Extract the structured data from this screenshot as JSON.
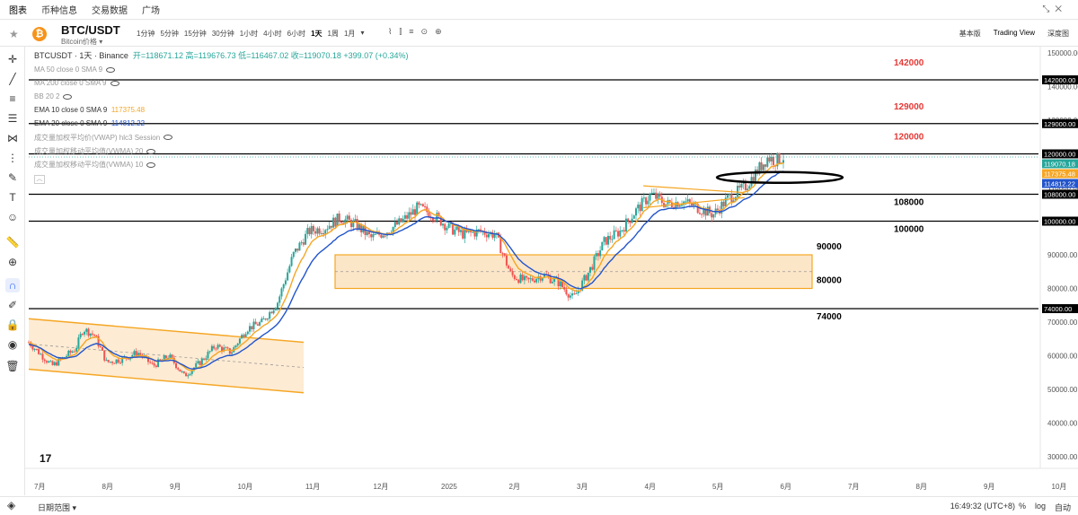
{
  "topbar": {
    "tabs": [
      "图表",
      "币种信息",
      "交易数据",
      "广场"
    ]
  },
  "header": {
    "pair": "BTC/USDT",
    "subtitle": "Bitcoin价格",
    "coin_letter": "₿",
    "intervals": [
      "1分钟",
      "5分钟",
      "15分钟",
      "30分钟",
      "1小时",
      "4小时",
      "6小时",
      "1天",
      "1周",
      "1月"
    ],
    "active_interval": "1天",
    "views": [
      "基本版",
      "Trading View",
      "深度图"
    ],
    "active_view": "Trading View"
  },
  "legend": {
    "ohlc_line": "BTCUSDT · 1天 · Binance",
    "ohlc_values": "开=118671.12 高=119676.73 低=116467.02 收=119070.18 +399.07 (+0.34%)",
    "ma50": "MA 50 close 0 SMA 9",
    "ma200": "MA 200 close 0 SMA 9",
    "bb": "BB 20 2",
    "ema10": "EMA 10 close 0 SMA 9",
    "ema10_value": "117375.48",
    "ema20": "EMA 20 close 0 SMA 9",
    "ema20_value": "114812.22",
    "vwap": "成交量加权平均价(VWAP) hlc3 Session",
    "vwma20": "成交量加权移动平均值(VWMA) 20",
    "vwma10": "成交量加权移动平均值(VWMA) 10"
  },
  "colors": {
    "up": "#26a69a",
    "down": "#ef5350",
    "ema10": "#f5a623",
    "ema20": "#2255cc",
    "zone_fill": "#fce6c8",
    "zone_border": "#f5a623",
    "annotation_red": "#e53935"
  },
  "chart_data": {
    "type": "candlestick",
    "y_range": [
      30000,
      150000
    ],
    "y_ticks": [
      "150000.00",
      "140000.00",
      "130000.00",
      "120000.00",
      "110000.00",
      "100000.00",
      "90000.00",
      "80000.00",
      "70000.00",
      "60000.00",
      "50000.00",
      "40000.00",
      "30000.00"
    ],
    "x_labels": [
      "7月",
      "8月",
      "9月",
      "10月",
      "11月",
      "12月",
      "2025",
      "2月",
      "3月",
      "4月",
      "5月",
      "6月",
      "7月",
      "8月",
      "9月",
      "10月"
    ],
    "price_tags": [
      {
        "label": "142000.00",
        "value": 142000,
        "color": "#000000"
      },
      {
        "label": "129000.00",
        "value": 129000,
        "color": "#000000"
      },
      {
        "label": "120000.00",
        "value": 120000,
        "color": "#000000"
      },
      {
        "label": "119070.18",
        "value": 119070.18,
        "color": "#26a69a"
      },
      {
        "label": "117375.48",
        "value": 117375.48,
        "color": "#f5a623"
      },
      {
        "label": "114812.22",
        "value": 114812.22,
        "color": "#2255cc"
      },
      {
        "label": "108000.00",
        "value": 108000,
        "color": "#000000"
      },
      {
        "label": "100000.00",
        "value": 100000,
        "color": "#000000"
      },
      {
        "label": "74000.00",
        "value": 74000,
        "color": "#000000"
      }
    ],
    "horizontal_levels": [
      142000,
      129000,
      120000,
      108000,
      100000,
      74000
    ],
    "annotations": [
      {
        "text": "142000",
        "value": 142000,
        "color": "red"
      },
      {
        "text": "129000",
        "value": 129000,
        "color": "red"
      },
      {
        "text": "120000",
        "value": 120000,
        "color": "red"
      },
      {
        "text": "108000",
        "value": 108000,
        "color": "black"
      },
      {
        "text": "100000",
        "value": 100000,
        "color": "black"
      },
      {
        "text": "90000",
        "value": 90000,
        "color": "black"
      },
      {
        "text": "80000",
        "value": 80000,
        "color": "black"
      },
      {
        "text": "74000",
        "value": 74000,
        "color": "black"
      }
    ],
    "range_zone": {
      "low": 80000,
      "high": 90000,
      "mid": 85000
    },
    "descending_channel": {
      "start_top": 71000,
      "start_bottom": 56000,
      "end_top": 64000,
      "end_bottom": 49000
    },
    "price_path": [
      [
        0,
        64000
      ],
      [
        0.03,
        57000
      ],
      [
        0.06,
        62000
      ],
      [
        0.07,
        68000
      ],
      [
        0.085,
        66000
      ],
      [
        0.1,
        58000
      ],
      [
        0.12,
        59000
      ],
      [
        0.14,
        61000
      ],
      [
        0.16,
        57000
      ],
      [
        0.18,
        60000
      ],
      [
        0.2,
        54000
      ],
      [
        0.22,
        58000
      ],
      [
        0.24,
        63000
      ],
      [
        0.26,
        61000
      ],
      [
        0.28,
        68000
      ],
      [
        0.3,
        70000
      ],
      [
        0.32,
        76000
      ],
      [
        0.34,
        90000
      ],
      [
        0.36,
        97000
      ],
      [
        0.38,
        98000
      ],
      [
        0.4,
        101000
      ],
      [
        0.42,
        99000
      ],
      [
        0.44,
        95000
      ],
      [
        0.46,
        97000
      ],
      [
        0.48,
        100000
      ],
      [
        0.5,
        104000
      ],
      [
        0.52,
        102000
      ],
      [
        0.54,
        98000
      ],
      [
        0.56,
        96000
      ],
      [
        0.58,
        97000
      ],
      [
        0.6,
        96000
      ],
      [
        0.62,
        84000
      ],
      [
        0.64,
        82000
      ],
      [
        0.66,
        84000
      ],
      [
        0.68,
        82000
      ],
      [
        0.7,
        77000
      ],
      [
        0.72,
        85000
      ],
      [
        0.74,
        94000
      ],
      [
        0.76,
        97000
      ],
      [
        0.78,
        103000
      ],
      [
        0.8,
        108000
      ],
      [
        0.82,
        105000
      ],
      [
        0.84,
        106000
      ],
      [
        0.86,
        104000
      ],
      [
        0.88,
        102000
      ],
      [
        0.9,
        107000
      ],
      [
        0.92,
        110000
      ],
      [
        0.95,
        119000
      ],
      [
        0.96,
        118000
      ],
      [
        0.97,
        119070
      ]
    ],
    "last_price": 119070.18
  },
  "footer": {
    "date_range": "日期范围",
    "clock": "16:49:32 (UTC+8)",
    "options": [
      "%",
      "log",
      "自动"
    ]
  }
}
